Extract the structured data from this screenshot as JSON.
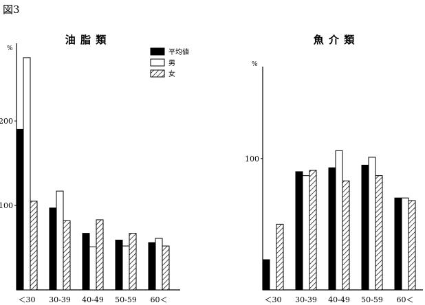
{
  "figure_label": "図3",
  "legend": {
    "items": [
      {
        "label": "平均値",
        "style": "solid"
      },
      {
        "label": "男",
        "style": "open"
      },
      {
        "label": "女",
        "style": "hatched"
      }
    ]
  },
  "chart_data": [
    {
      "type": "bar",
      "title": "油 脂 類",
      "unit_label": "%",
      "xlabel": "",
      "ylabel": "",
      "ylim": [
        0,
        292
      ],
      "yticks": [
        100,
        200
      ],
      "grid": false,
      "legend_placement": "top-right",
      "categories": [
        "＜30",
        "30-39",
        "40-49",
        "50-59",
        "60＜"
      ],
      "series": [
        {
          "name": "平均値",
          "values": [
            190,
            97,
            67,
            59,
            56
          ]
        },
        {
          "name": "男",
          "values": [
            275,
            117,
            51,
            52,
            61
          ]
        },
        {
          "name": "女",
          "values": [
            105,
            82,
            83,
            67,
            52
          ]
        }
      ]
    },
    {
      "type": "bar",
      "title": "魚 介 類",
      "unit_label": "%",
      "xlabel": "",
      "ylabel": "",
      "ylim": [
        0,
        170
      ],
      "yticks": [
        100
      ],
      "grid": false,
      "legend_placement": "none",
      "categories": [
        "＜30",
        "30-39",
        "40-49",
        "50-59",
        "60＜"
      ],
      "series": [
        {
          "name": "平均値",
          "values": [
            23,
            90,
            93,
            95,
            70
          ]
        },
        {
          "name": "男",
          "values": [
            0,
            87,
            106,
            101,
            70
          ]
        },
        {
          "name": "女",
          "values": [
            50,
            91,
            83,
            87,
            68
          ]
        }
      ]
    }
  ],
  "colors": {
    "ink": "#000000",
    "paper": "#ffffff"
  }
}
